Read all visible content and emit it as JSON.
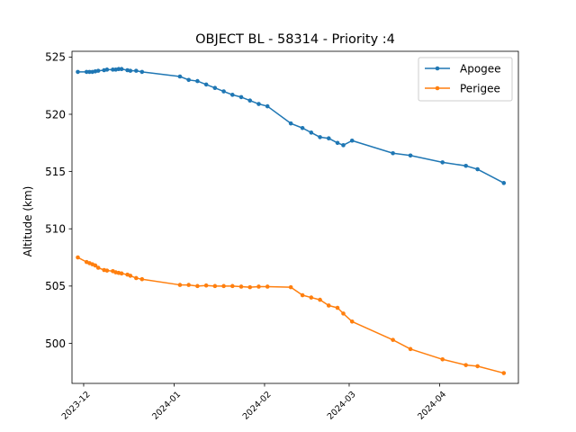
{
  "chart_data": {
    "type": "line",
    "title": "OBJECT BL - 58314 - Priority :4",
    "xlabel": "",
    "ylabel": "Altitude (km)",
    "xlim": [
      "2023-11-27",
      "2024-04-28"
    ],
    "ylim": [
      496.5,
      525.5
    ],
    "x_ticks": [
      "2023-12",
      "2024-01",
      "2024-02",
      "2024-03",
      "2024-04"
    ],
    "y_ticks": [
      500,
      505,
      510,
      515,
      520,
      525
    ],
    "grid": false,
    "legend": "top-right",
    "series": [
      {
        "name": "Apogee",
        "color": "#1f77b4",
        "points": [
          [
            "2023-11-29",
            523.7
          ],
          [
            "2023-12-02",
            523.7
          ],
          [
            "2023-12-03",
            523.7
          ],
          [
            "2023-12-04",
            523.7
          ],
          [
            "2023-12-05",
            523.75
          ],
          [
            "2023-12-06",
            523.8
          ],
          [
            "2023-12-08",
            523.85
          ],
          [
            "2023-12-09",
            523.9
          ],
          [
            "2023-12-11",
            523.9
          ],
          [
            "2023-12-12",
            523.9
          ],
          [
            "2023-12-13",
            523.95
          ],
          [
            "2023-12-14",
            523.95
          ],
          [
            "2023-12-16",
            523.85
          ],
          [
            "2023-12-17",
            523.8
          ],
          [
            "2023-12-19",
            523.8
          ],
          [
            "2023-12-21",
            523.7
          ],
          [
            "2024-01-03",
            523.3
          ],
          [
            "2024-01-06",
            523.0
          ],
          [
            "2024-01-09",
            522.9
          ],
          [
            "2024-01-12",
            522.6
          ],
          [
            "2024-01-15",
            522.3
          ],
          [
            "2024-01-18",
            522.0
          ],
          [
            "2024-01-21",
            521.7
          ],
          [
            "2024-01-24",
            521.5
          ],
          [
            "2024-01-27",
            521.2
          ],
          [
            "2024-01-30",
            520.9
          ],
          [
            "2024-02-02",
            520.7
          ],
          [
            "2024-02-10",
            519.2
          ],
          [
            "2024-02-14",
            518.8
          ],
          [
            "2024-02-17",
            518.4
          ],
          [
            "2024-02-20",
            518.0
          ],
          [
            "2024-02-23",
            517.9
          ],
          [
            "2024-02-26",
            517.5
          ],
          [
            "2024-02-28",
            517.3
          ],
          [
            "2024-03-02",
            517.7
          ],
          [
            "2024-03-16",
            516.6
          ],
          [
            "2024-03-22",
            516.4
          ],
          [
            "2024-04-02",
            515.8
          ],
          [
            "2024-04-10",
            515.5
          ],
          [
            "2024-04-14",
            515.2
          ],
          [
            "2024-04-23",
            514.0
          ]
        ]
      },
      {
        "name": "Perigee",
        "color": "#ff7f0e",
        "points": [
          [
            "2023-11-29",
            507.5
          ],
          [
            "2023-12-02",
            507.1
          ],
          [
            "2023-12-03",
            507.0
          ],
          [
            "2023-12-04",
            506.9
          ],
          [
            "2023-12-05",
            506.8
          ],
          [
            "2023-12-06",
            506.6
          ],
          [
            "2023-12-08",
            506.4
          ],
          [
            "2023-12-09",
            506.35
          ],
          [
            "2023-12-11",
            506.3
          ],
          [
            "2023-12-12",
            506.2
          ],
          [
            "2023-12-13",
            506.15
          ],
          [
            "2023-12-14",
            506.1
          ],
          [
            "2023-12-16",
            506.0
          ],
          [
            "2023-12-17",
            505.9
          ],
          [
            "2023-12-19",
            505.7
          ],
          [
            "2023-12-21",
            505.6
          ],
          [
            "2024-01-03",
            505.1
          ],
          [
            "2024-01-06",
            505.1
          ],
          [
            "2024-01-09",
            505.0
          ],
          [
            "2024-01-12",
            505.05
          ],
          [
            "2024-01-15",
            505.0
          ],
          [
            "2024-01-18",
            505.0
          ],
          [
            "2024-01-21",
            505.0
          ],
          [
            "2024-01-24",
            504.95
          ],
          [
            "2024-01-27",
            504.9
          ],
          [
            "2024-01-30",
            504.95
          ],
          [
            "2024-02-02",
            504.95
          ],
          [
            "2024-02-10",
            504.9
          ],
          [
            "2024-02-14",
            504.2
          ],
          [
            "2024-02-17",
            504.0
          ],
          [
            "2024-02-20",
            503.8
          ],
          [
            "2024-02-23",
            503.3
          ],
          [
            "2024-02-26",
            503.1
          ],
          [
            "2024-02-28",
            502.6
          ],
          [
            "2024-03-02",
            501.9
          ],
          [
            "2024-03-16",
            500.3
          ],
          [
            "2024-03-22",
            499.5
          ],
          [
            "2024-04-02",
            498.6
          ],
          [
            "2024-04-10",
            498.1
          ],
          [
            "2024-04-14",
            498.0
          ],
          [
            "2024-04-23",
            497.4
          ]
        ]
      }
    ]
  }
}
